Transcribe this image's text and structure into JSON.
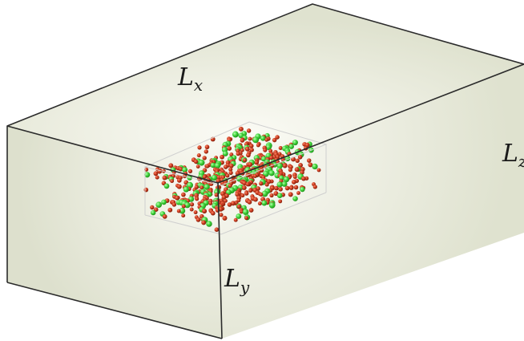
{
  "labels": {
    "x": {
      "main": "L",
      "sub": "x"
    },
    "y": {
      "main": "L",
      "sub": "y"
    },
    "z": {
      "main": "L",
      "sub": "z"
    }
  },
  "colors": {
    "box_edge": "#2b2b2b",
    "top_face": "#e6e8d8",
    "front_face": "#e8eadb",
    "right_face": "#e4e7d6",
    "highlight": "#ffffff",
    "atom_red": "#c83a1e",
    "atom_green": "#3fd33a",
    "inner_box": "#d9d9d9"
  },
  "atoms": {
    "red_count": 420,
    "green_count": 150
  }
}
